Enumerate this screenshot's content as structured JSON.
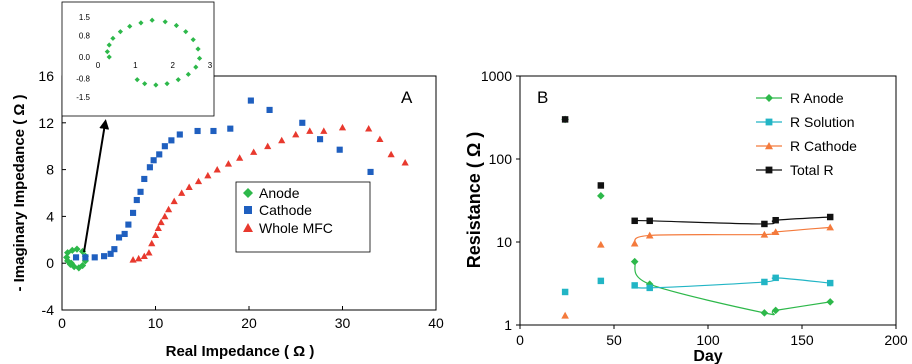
{
  "chart_data": [
    {
      "type": "scatter",
      "panel_label": "A",
      "xlabel": "Real Impedance ( Ω )",
      "ylabel": "- Imaginary Impedance ( Ω )",
      "xlim": [
        0,
        40
      ],
      "ylim": [
        -4,
        16
      ],
      "xticks": [
        0,
        10,
        20,
        30,
        40
      ],
      "yticks": [
        -4,
        0,
        4,
        8,
        12,
        16
      ],
      "grid": false,
      "legend_position": "bottom-center",
      "series": [
        {
          "name": "Anode",
          "color": "#2db84a",
          "marker": "diamond",
          "points": [
            [
              1.0,
              0.0
            ],
            [
              0.6,
              0.2
            ],
            [
              0.5,
              0.5
            ],
            [
              0.6,
              0.9
            ],
            [
              1.1,
              1.1
            ],
            [
              1.6,
              1.2
            ],
            [
              2.2,
              1.0
            ],
            [
              2.5,
              0.6
            ],
            [
              2.5,
              0.2
            ],
            [
              2.2,
              -0.2
            ],
            [
              1.8,
              -0.4
            ],
            [
              1.3,
              -0.3
            ],
            [
              0.9,
              -0.1
            ]
          ]
        },
        {
          "name": "Cathode",
          "color": "#1f5fbf",
          "marker": "square",
          "points": [
            [
              1.5,
              0.5
            ],
            [
              2.5,
              0.5
            ],
            [
              3.5,
              0.5
            ],
            [
              4.5,
              0.6
            ],
            [
              5.2,
              0.8
            ],
            [
              5.6,
              1.2
            ],
            [
              6.1,
              2.2
            ],
            [
              6.7,
              2.5
            ],
            [
              7.1,
              3.3
            ],
            [
              7.6,
              4.3
            ],
            [
              8.0,
              5.4
            ],
            [
              8.4,
              6.1
            ],
            [
              8.8,
              7.2
            ],
            [
              9.4,
              8.2
            ],
            [
              9.8,
              8.8
            ],
            [
              10.4,
              9.3
            ],
            [
              11.0,
              10.0
            ],
            [
              11.7,
              10.5
            ],
            [
              12.6,
              11.0
            ],
            [
              14.5,
              11.3
            ],
            [
              16.2,
              11.3
            ],
            [
              18.0,
              11.5
            ],
            [
              20.2,
              13.9
            ],
            [
              22.2,
              13.1
            ],
            [
              25.7,
              12.0
            ],
            [
              27.6,
              10.6
            ],
            [
              29.7,
              9.7
            ],
            [
              33.0,
              7.8
            ]
          ]
        },
        {
          "name": "Whole MFC",
          "color": "#e8392e",
          "marker": "triangle",
          "points": [
            [
              7.6,
              0.3
            ],
            [
              8.2,
              0.4
            ],
            [
              8.8,
              0.6
            ],
            [
              9.3,
              0.9
            ],
            [
              9.6,
              1.7
            ],
            [
              10.0,
              2.4
            ],
            [
              10.3,
              3.0
            ],
            [
              10.6,
              3.5
            ],
            [
              11.0,
              4.0
            ],
            [
              11.4,
              4.6
            ],
            [
              12.0,
              5.3
            ],
            [
              12.8,
              6.0
            ],
            [
              13.6,
              6.5
            ],
            [
              14.6,
              7.0
            ],
            [
              15.6,
              7.5
            ],
            [
              16.6,
              8.0
            ],
            [
              17.8,
              8.5
            ],
            [
              19.0,
              9.0
            ],
            [
              20.5,
              9.5
            ],
            [
              22.0,
              10.0
            ],
            [
              23.5,
              10.5
            ],
            [
              25.0,
              11.0
            ],
            [
              26.5,
              11.3
            ],
            [
              28.0,
              11.3
            ],
            [
              30.0,
              11.6
            ],
            [
              32.8,
              11.5
            ],
            [
              34.0,
              10.6
            ],
            [
              35.2,
              9.3
            ],
            [
              36.7,
              8.6
            ]
          ]
        }
      ],
      "inset": {
        "xlim": [
          0,
          3
        ],
        "ylim": [
          -1.5,
          1.5
        ],
        "xticks": [
          0,
          1,
          2,
          3
        ],
        "yticks": [
          "1.5",
          "0.8",
          "0.0",
          "-0.8",
          "-1.5"
        ],
        "series_color": "#2db84a",
        "points": [
          [
            0.3,
            0.0
          ],
          [
            0.25,
            0.2
          ],
          [
            0.3,
            0.45
          ],
          [
            0.4,
            0.7
          ],
          [
            0.6,
            0.95
          ],
          [
            0.85,
            1.15
          ],
          [
            1.15,
            1.28
          ],
          [
            1.45,
            1.38
          ],
          [
            1.8,
            1.32
          ],
          [
            2.1,
            1.18
          ],
          [
            2.35,
            0.95
          ],
          [
            2.55,
            0.65
          ],
          [
            2.68,
            0.3
          ],
          [
            2.72,
            -0.05
          ],
          [
            2.62,
            -0.38
          ],
          [
            2.42,
            -0.65
          ],
          [
            2.15,
            -0.85
          ],
          [
            1.85,
            -1.0
          ],
          [
            1.55,
            -1.05
          ],
          [
            1.25,
            -1.0
          ],
          [
            1.05,
            -0.85
          ]
        ]
      }
    },
    {
      "type": "scatter",
      "panel_label": "B",
      "xlabel": "Day",
      "ylabel": "Resistance ( Ω )",
      "xlim": [
        0,
        200
      ],
      "ylim": [
        1,
        1000
      ],
      "yscale": "log",
      "xticks": [
        0,
        50,
        100,
        150,
        200
      ],
      "yticks": [
        1,
        10,
        100,
        1000
      ],
      "grid": false,
      "legend_position": "top-right",
      "series": [
        {
          "name": "R Anode",
          "color": "#2db84a",
          "marker": "diamond",
          "points": [
            [
              24,
              300
            ],
            [
              43,
              36
            ],
            [
              61,
              5.8
            ],
            [
              69,
              3.1
            ],
            [
              130,
              1.4
            ],
            [
              136,
              1.5
            ],
            [
              165,
              1.9
            ]
          ],
          "line_from_index": 2
        },
        {
          "name": "R Solution",
          "color": "#22b5c5",
          "marker": "square",
          "points": [
            [
              24,
              2.5
            ],
            [
              43,
              3.4
            ],
            [
              61,
              3.0
            ],
            [
              69,
              2.8
            ],
            [
              130,
              3.3
            ],
            [
              136,
              3.7
            ],
            [
              165,
              3.2
            ]
          ],
          "line_from_index": 2
        },
        {
          "name": "R Cathode",
          "color": "#f47a3c",
          "marker": "triangle",
          "points": [
            [
              24,
              1.3
            ],
            [
              43,
              9.3
            ],
            [
              61,
              9.6
            ],
            [
              69,
              12.0
            ],
            [
              130,
              12.3
            ],
            [
              136,
              13.2
            ],
            [
              165,
              15.0
            ]
          ],
          "line_from_index": 2
        },
        {
          "name": "Total R",
          "color": "#111111",
          "marker": "square",
          "points": [
            [
              24,
              300
            ],
            [
              43,
              48
            ],
            [
              61,
              18.0
            ],
            [
              69,
              18.0
            ],
            [
              130,
              16.5
            ],
            [
              136,
              18.3
            ],
            [
              165,
              20.0
            ]
          ],
          "line_from_index": 2
        }
      ]
    }
  ]
}
